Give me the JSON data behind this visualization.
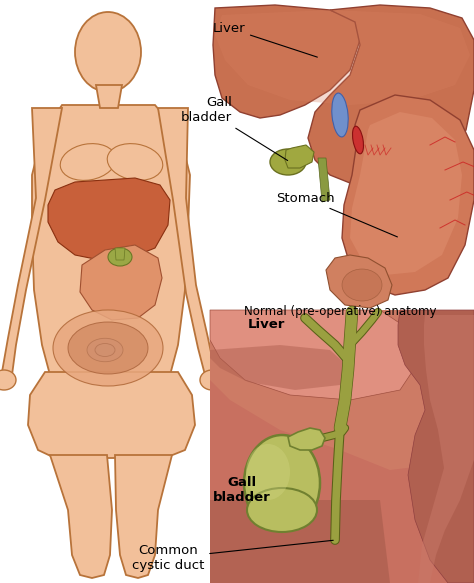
{
  "background_color": "#ffffff",
  "skin_color": "#F2C09A",
  "skin_outline": "#B8733A",
  "labels": {
    "liver": "Liver",
    "gallbladder": "Gall\nbladder",
    "stomach": "Stomach",
    "normal_anatomy": "Normal (pre-operative) anatomy",
    "liver2": "Liver",
    "gallbladder2": "Gall\nbladder",
    "common_cystic": "Common\ncystic duct"
  },
  "fig_width": 4.74,
  "fig_height": 5.83,
  "dpi": 100
}
